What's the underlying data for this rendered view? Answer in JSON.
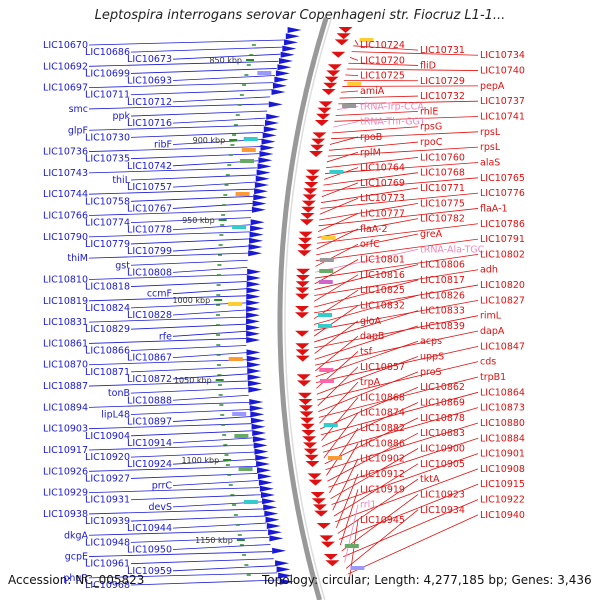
{
  "title": "Leptospira interrogans serovar Copenhageni str. Fiocruz L1-1...",
  "footer": {
    "accession": "Accession: NC_005823",
    "topology": "Topology: circular; Length: 4,277,185 bp; Genes: 3,436"
  },
  "colors": {
    "forward": "#1a1ad6",
    "reverse": "#e01010",
    "rna": "#ee88bb",
    "tick": "#2a8a2a",
    "backbone": "#999999"
  },
  "scale": [
    "850 kbp",
    "900 kbp",
    "950 kbp",
    "1000 kbp",
    "1050 kbp",
    "1100 kbp",
    "1150 kbp"
  ],
  "left_labels": [
    "LIC10670",
    "LIC10686",
    "LIC10673",
    "LIC10692",
    "LIC10699",
    "LIC10693",
    "LIC10697",
    "LIC10711",
    "LIC10712",
    "smc",
    "ppk",
    "LIC10716",
    "glpF",
    "LIC10730",
    "ribF",
    "LIC10736",
    "LIC10735",
    "LIC10742",
    "LIC10743",
    "thiL",
    "LIC10757",
    "LIC10744",
    "LIC10758",
    "LIC10767",
    "LIC10766",
    "LIC10774",
    "LIC10778",
    "LIC10790",
    "LIC10779",
    "LIC10799",
    "thiM",
    "gst",
    "LIC10808",
    "LIC10810",
    "LIC10818",
    "ccmF",
    "LIC10819",
    "LIC10824",
    "LIC10828",
    "LIC10831",
    "LIC10829",
    "rfe",
    "LIC10861",
    "LIC10866",
    "LIC10867",
    "LIC10870",
    "LIC10871",
    "LIC10872",
    "LIC10887",
    "tonB",
    "LIC10888",
    "LIC10894",
    "lipL48",
    "LIC10897",
    "LIC10903",
    "LIC10904",
    "LIC10914",
    "LIC10917",
    "LIC10920",
    "LIC10924",
    "LIC10926",
    "LIC10927",
    "prrC",
    "LIC10929",
    "LIC10931",
    "devS",
    "LIC10938",
    "LIC10939",
    "LIC10944",
    "dkgA",
    "LIC10948",
    "LIC10950",
    "gcpE",
    "LIC10961",
    "LIC10959",
    "phuR",
    "LIC10968"
  ],
  "right_labels": [
    "LIC10724",
    "LIC10731",
    "LIC10734",
    "LIC10720",
    "fliD",
    "LIC10740",
    "LIC10725",
    "LIC10729",
    "pepA",
    "amiA",
    "LIC10732",
    "LIC10737",
    "tRNA-Trp-CCA",
    "rhlE",
    "LIC10741",
    "tRNA-Thr-GGT",
    "rpsG",
    "rpsL",
    "rpoB",
    "rpoC",
    "rpsL",
    "rplM",
    "LIC10760",
    "alaS",
    "LIC10764",
    "LIC10768",
    "LIC10765",
    "LIC10769",
    "LIC10771",
    "LIC10776",
    "LIC10773",
    "LIC10775",
    "flaA-1",
    "LIC10777",
    "LIC10782",
    "LIC10786",
    "flaA-2",
    "greA",
    "LIC10791",
    "orfC",
    "tRNA-Ala-TGC",
    "LIC10802",
    "LIC10801",
    "LIC10806",
    "adh",
    "LIC10816",
    "LIC10817",
    "LIC10820",
    "LIC10825",
    "LIC10826",
    "LIC10827",
    "LIC10832",
    "LIC10833",
    "rimL",
    "gloA",
    "LIC10839",
    "dapA",
    "dapB",
    "acps",
    "LIC10847",
    "tsf",
    "uppS",
    "cds",
    "LIC10857",
    "proS",
    "trpB1",
    "trpA",
    "LIC10862",
    "LIC10864",
    "LIC10868",
    "LIC10869",
    "LIC10873",
    "LIC10874",
    "LIC10878",
    "LIC10880",
    "LIC10882",
    "LIC10883",
    "LIC10884",
    "LIC10886",
    "LIC10900",
    "LIC10901",
    "LIC10902",
    "LIC10905",
    "LIC10908",
    "LIC10912",
    "tktA",
    "LIC10915",
    "LIC10919",
    "LIC10923",
    "LIC10922",
    "rrl1",
    "LIC10934",
    "LIC10940",
    "LIC10945"
  ]
}
